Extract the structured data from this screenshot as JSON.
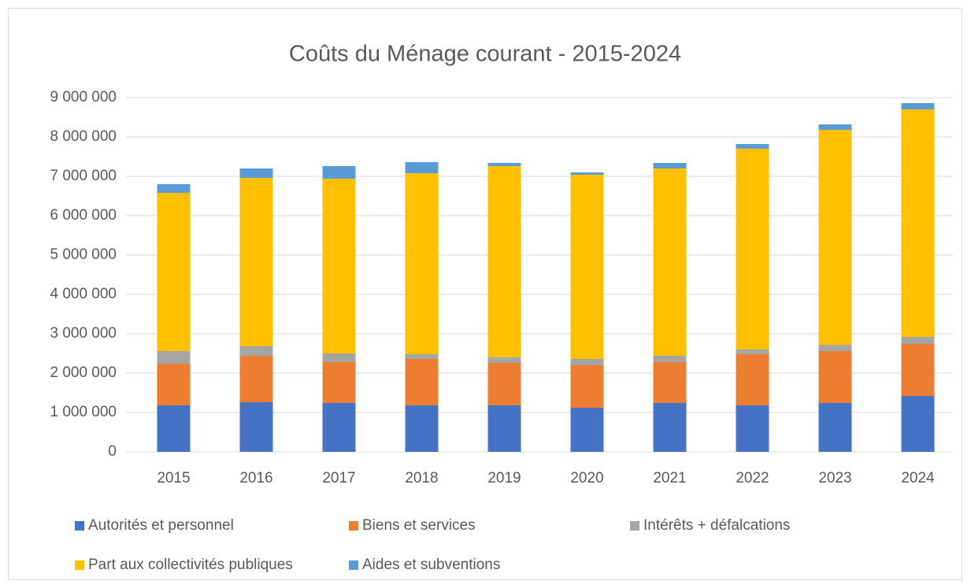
{
  "chart_data": {
    "type": "stacked_bar",
    "title": "Coûts du Ménage courant - 2015-2024",
    "categories": [
      "2015",
      "2016",
      "2017",
      "2018",
      "2019",
      "2020",
      "2021",
      "2022",
      "2023",
      "2024"
    ],
    "series": [
      {
        "name": "Autorités et personnel",
        "color": "#4472c4",
        "values": [
          1180000,
          1260000,
          1240000,
          1180000,
          1180000,
          1120000,
          1240000,
          1180000,
          1240000,
          1420000
        ]
      },
      {
        "name": "Biens et services",
        "color": "#ed7d31",
        "values": [
          1060000,
          1180000,
          1040000,
          1180000,
          1080000,
          1080000,
          1040000,
          1300000,
          1320000,
          1320000
        ]
      },
      {
        "name": "Intérêts + défalcations",
        "color": "#a5a5a5",
        "values": [
          320000,
          240000,
          220000,
          120000,
          140000,
          160000,
          160000,
          120000,
          160000,
          180000
        ]
      },
      {
        "name": "Part aux collectivités publiques",
        "color": "#ffc000",
        "values": [
          4020000,
          4280000,
          4440000,
          4600000,
          4860000,
          4680000,
          4760000,
          5100000,
          5460000,
          5780000
        ]
      },
      {
        "name": "Aides et subventions",
        "color": "#5b9bd5",
        "values": [
          220000,
          240000,
          320000,
          280000,
          80000,
          60000,
          140000,
          120000,
          140000,
          160000
        ]
      }
    ],
    "ylim": [
      0,
      9000000
    ],
    "yticks": [
      0,
      {
        "value": 1000000,
        "label": "1 000 000"
      },
      {
        "value": 2000000,
        "label": "2 000 000"
      },
      {
        "value": 3000000,
        "label": "3 000 000"
      },
      {
        "value": 4000000,
        "label": "4 000 000"
      },
      {
        "value": 5000000,
        "label": "5 000 000"
      },
      {
        "value": 6000000,
        "label": "6 000 000"
      },
      {
        "value": 7000000,
        "label": "7 000 000"
      },
      {
        "value": 8000000,
        "label": "8 000 000"
      },
      {
        "value": 9000000,
        "label": "9 000 000"
      }
    ],
    "grid": true,
    "legend": "bottom"
  }
}
